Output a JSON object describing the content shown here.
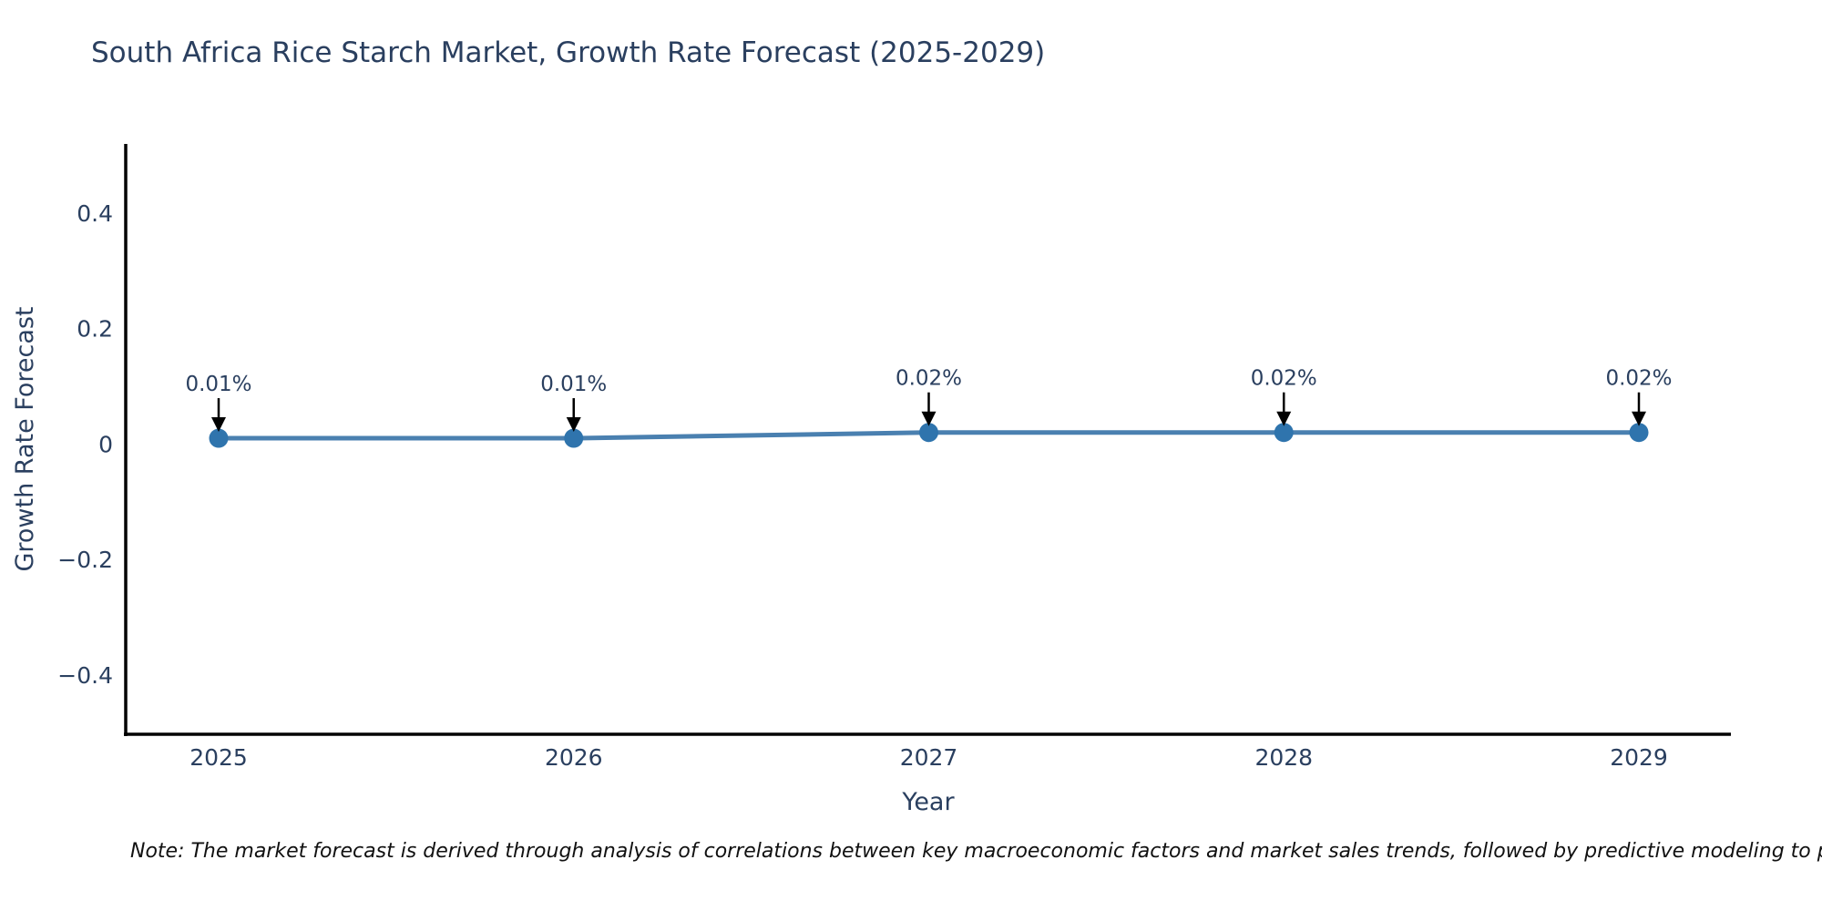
{
  "note": "Note: The market forecast is derived through analysis of correlations between key macroeconomic factors and market sales trends, followed by predictive modeling to project future sa",
  "chart_data": {
    "type": "line",
    "title": "South Africa Rice Starch Market, Growth Rate Forecast (2025-2029)",
    "xlabel": "Year",
    "ylabel": "Growth Rate Forecast",
    "x": [
      "2025",
      "2026",
      "2027",
      "2028",
      "2029"
    ],
    "series": [
      {
        "name": "Growth Rate Forecast",
        "values": [
          0.01,
          0.01,
          0.02,
          0.02,
          0.02
        ]
      }
    ],
    "point_labels": [
      "0.01%",
      "0.01%",
      "0.02%",
      "0.02%",
      "0.02%"
    ],
    "yticks": {
      "values": [
        0.4,
        0.2,
        0,
        -0.2,
        -0.4
      ],
      "labels": [
        "0.4",
        "0.2",
        "0",
        "−0.2",
        "−0.4"
      ]
    },
    "ylim": [
      -0.503,
      0.52
    ],
    "grid": false,
    "legend": "none",
    "colors": {
      "line": "#4a80b0",
      "marker": "#2f74ad",
      "axis": "#000000",
      "text": "#2a3f5f",
      "annotation_text": "#2a3f5f",
      "annotation_arrow": "#000000"
    }
  }
}
